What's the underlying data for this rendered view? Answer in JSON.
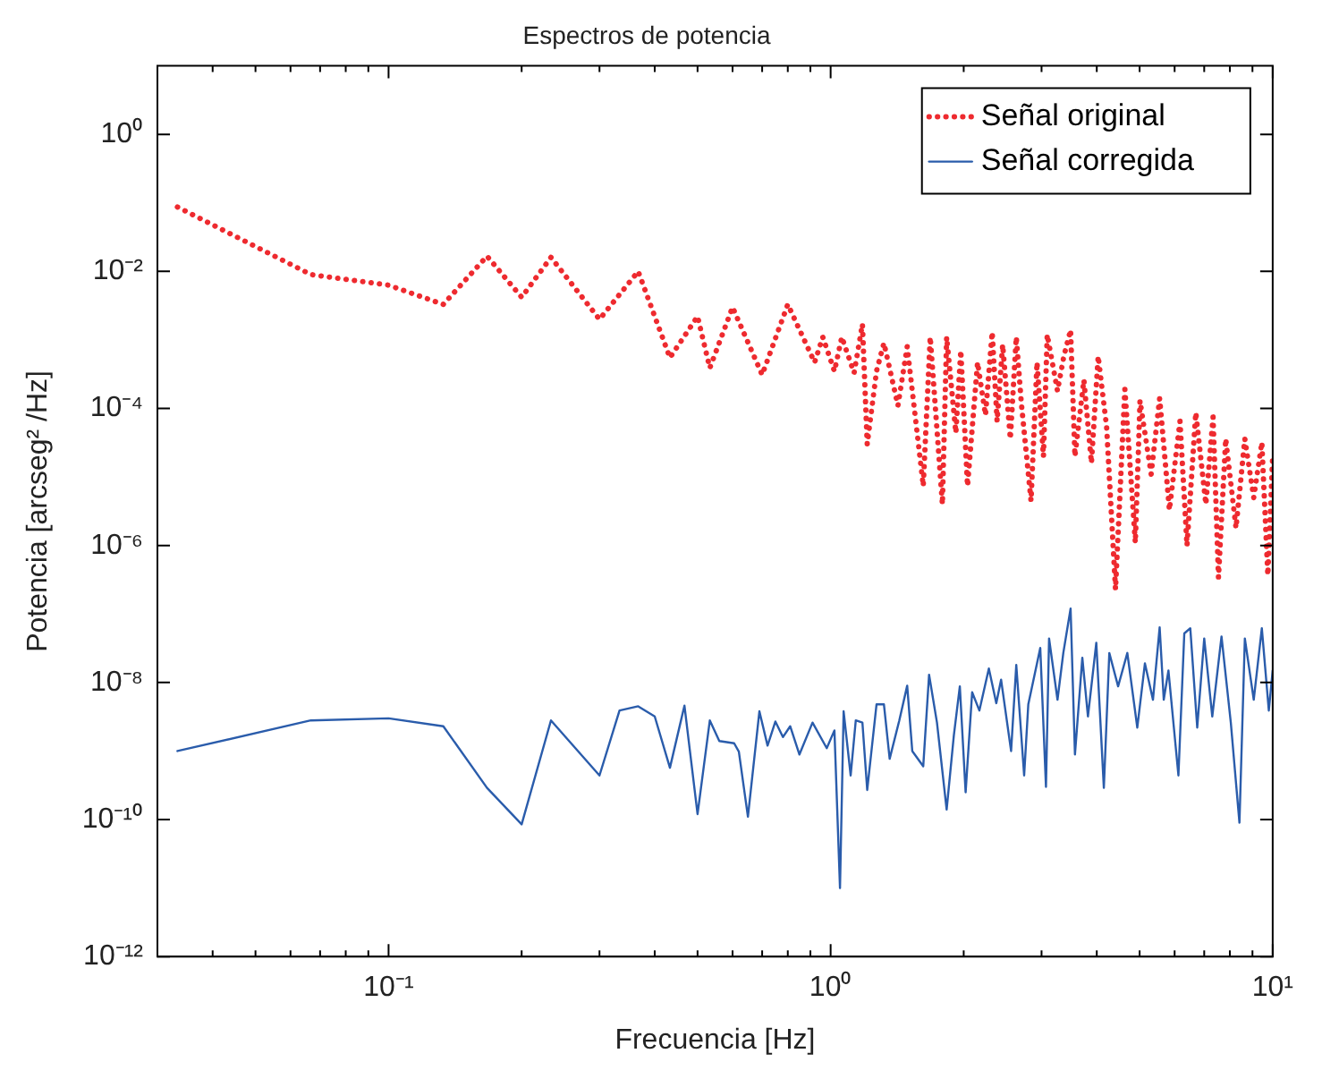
{
  "chart_data": {
    "type": "line",
    "title": "Espectros de potencia",
    "xlabel": "Frecuencia [Hz]",
    "ylabel": "Potencia [arcseg² /Hz]",
    "log": "xy",
    "xlim": [
      0.03,
      10
    ],
    "ylim": [
      1e-12,
      10
    ],
    "xticks": [
      {
        "value": 0.04,
        "label": null
      },
      {
        "value": 0.05,
        "label": null
      },
      {
        "value": 0.06,
        "label": null
      },
      {
        "value": 0.07,
        "label": null
      },
      {
        "value": 0.08,
        "label": null
      },
      {
        "value": 0.09,
        "label": null
      },
      {
        "value": 0.1,
        "label": "10⁻¹"
      },
      {
        "value": 0.2,
        "label": null
      },
      {
        "value": 0.3,
        "label": null
      },
      {
        "value": 0.4,
        "label": null
      },
      {
        "value": 0.5,
        "label": null
      },
      {
        "value": 0.6,
        "label": null
      },
      {
        "value": 0.7,
        "label": null
      },
      {
        "value": 0.8,
        "label": null
      },
      {
        "value": 0.9,
        "label": null
      },
      {
        "value": 1,
        "label": "10⁰"
      },
      {
        "value": 2,
        "label": null
      },
      {
        "value": 3,
        "label": null
      },
      {
        "value": 4,
        "label": null
      },
      {
        "value": 5,
        "label": null
      },
      {
        "value": 6,
        "label": null
      },
      {
        "value": 7,
        "label": null
      },
      {
        "value": 8,
        "label": null
      },
      {
        "value": 9,
        "label": null
      },
      {
        "value": 10,
        "label": "10¹"
      }
    ],
    "yticks": [
      {
        "value": 1e-12,
        "label": "10⁻¹²"
      },
      {
        "value": 1e-10,
        "label": "10⁻¹⁰"
      },
      {
        "value": 1e-08,
        "label": "10⁻⁸"
      },
      {
        "value": 1e-06,
        "label": "10⁻⁶"
      },
      {
        "value": 0.0001,
        "label": "10⁻⁴"
      },
      {
        "value": 0.01,
        "label": "10⁻²"
      },
      {
        "value": 1,
        "label": "10⁰"
      }
    ],
    "grid": false,
    "legend": "top right",
    "marker": "none",
    "series": [
      {
        "name": "Señal original",
        "color": "#ee2a2f",
        "line_style": "dotted",
        "x": [
          0.0333,
          0.0667,
          0.1,
          0.133,
          0.167,
          0.2,
          0.233,
          0.3,
          0.367,
          0.433,
          0.5,
          0.533,
          0.6,
          0.7,
          0.8,
          0.92,
          0.96,
          1.02,
          1.06,
          1.13,
          1.18,
          1.21,
          1.27,
          1.32,
          1.42,
          1.49,
          1.62,
          1.68,
          1.79,
          1.83,
          1.92,
          1.97,
          2.04,
          2.15,
          2.24,
          2.32,
          2.38,
          2.45,
          2.55,
          2.63,
          2.7,
          2.84,
          2.93,
          3.03,
          3.09,
          3.26,
          3.37,
          3.49,
          3.57,
          3.74,
          3.89,
          4.03,
          4.21,
          4.41,
          4.63,
          4.89,
          5.01,
          5.31,
          5.55,
          5.84,
          6.17,
          6.4,
          6.7,
          7.06,
          7.33,
          7.54,
          7.83,
          8.26,
          8.65,
          9.06,
          9.45,
          9.75,
          10
        ],
        "values": [
          0.087,
          0.009,
          0.0063,
          0.0033,
          0.0167,
          0.0042,
          0.016,
          0.002,
          0.01,
          0.00055,
          0.0022,
          0.00039,
          0.003,
          0.00031,
          0.0033,
          0.00047,
          0.0011,
          0.00035,
          0.0011,
          0.00033,
          0.0017,
          3e-05,
          0.00035,
          0.0009,
          0.00011,
          0.0008,
          7.4e-06,
          0.0011,
          4e-06,
          0.0011,
          4.4e-05,
          0.0007,
          7.4e-06,
          0.00047,
          8e-05,
          0.0013,
          6.5e-05,
          0.00085,
          3.6e-05,
          0.0011,
          0.00012,
          4.5e-06,
          0.00047,
          2e-05,
          0.0012,
          0.00018,
          0.00058,
          0.0014,
          2e-05,
          0.00026,
          1.6e-05,
          0.00058,
          5.4e-05,
          2.3e-07,
          0.00019,
          1.1e-06,
          0.00013,
          1.1e-05,
          0.00014,
          3.3e-06,
          6.5e-05,
          1e-06,
          8.7e-05,
          4e-06,
          7.5e-05,
          3.4e-07,
          3.6e-05,
          1.8e-06,
          3.6e-05,
          5e-06,
          3.2e-05,
          3.7e-07,
          2e-05
        ]
      },
      {
        "name": "Señal corregida",
        "color": "#2a5cab",
        "line_style": "solid",
        "x": [
          0.0333,
          0.0667,
          0.1,
          0.133,
          0.167,
          0.2,
          0.233,
          0.3,
          0.333,
          0.367,
          0.4,
          0.433,
          0.467,
          0.5,
          0.533,
          0.56,
          0.605,
          0.62,
          0.65,
          0.69,
          0.72,
          0.75,
          0.78,
          0.81,
          0.85,
          0.91,
          0.98,
          1.02,
          1.05,
          1.07,
          1.11,
          1.14,
          1.18,
          1.21,
          1.27,
          1.32,
          1.36,
          1.43,
          1.49,
          1.53,
          1.62,
          1.67,
          1.74,
          1.83,
          1.9,
          1.96,
          2.02,
          2.09,
          2.17,
          2.28,
          2.37,
          2.43,
          2.56,
          2.63,
          2.74,
          2.8,
          2.98,
          3.07,
          3.12,
          3.26,
          3.36,
          3.49,
          3.57,
          3.71,
          3.82,
          3.99,
          4.15,
          4.27,
          4.47,
          4.69,
          4.94,
          5.14,
          5.36,
          5.55,
          5.67,
          5.81,
          6.12,
          6.31,
          6.51,
          6.75,
          7,
          7.3,
          7.66,
          8.04,
          8.41,
          8.65,
          9.06,
          9.45,
          9.8,
          10
        ],
        "values": [
          1e-09,
          2.8e-09,
          3e-09,
          2.3e-09,
          2.9e-10,
          8.5e-11,
          2.8e-09,
          4.4e-10,
          3.9e-09,
          4.5e-09,
          3.2e-09,
          5.7e-10,
          4.6e-09,
          1.2e-10,
          2.8e-09,
          1.4e-09,
          1.3e-09,
          9.8e-10,
          1.1e-10,
          3.8e-09,
          1.2e-09,
          2.7e-09,
          1.6e-09,
          2.3e-09,
          8.9e-10,
          2.6e-09,
          1.1e-09,
          2e-09,
          1e-11,
          3.8e-09,
          4.4e-10,
          2.8e-09,
          2.6e-09,
          2.7e-10,
          4.8e-09,
          4.8e-09,
          7.7e-10,
          2.8e-09,
          9e-09,
          1e-09,
          6e-10,
          1.3e-08,
          2.6e-09,
          1.4e-10,
          1.7e-09,
          8.8e-09,
          2.5e-10,
          7.2e-09,
          3.9e-09,
          1.6e-08,
          5e-09,
          1.1e-08,
          1e-09,
          1.8e-08,
          4.4e-10,
          4.8e-09,
          3.2e-08,
          3e-10,
          4.4e-08,
          5.6e-09,
          2.7e-08,
          1.2e-07,
          8.9e-10,
          2.3e-08,
          3.2e-09,
          3.8e-08,
          2.9e-10,
          2.7e-08,
          8.8e-09,
          2.7e-08,
          2.2e-09,
          1.9e-08,
          5.6e-09,
          6.4e-08,
          5.6e-09,
          1.5e-08,
          4.4e-10,
          5.2e-08,
          6.2e-08,
          2.2e-09,
          4.4e-08,
          3.2e-09,
          4.7e-08,
          2.6e-09,
          9e-11,
          4.4e-08,
          5.6e-09,
          6.2e-08,
          3.9e-09,
          1.5e-08
        ]
      }
    ]
  }
}
